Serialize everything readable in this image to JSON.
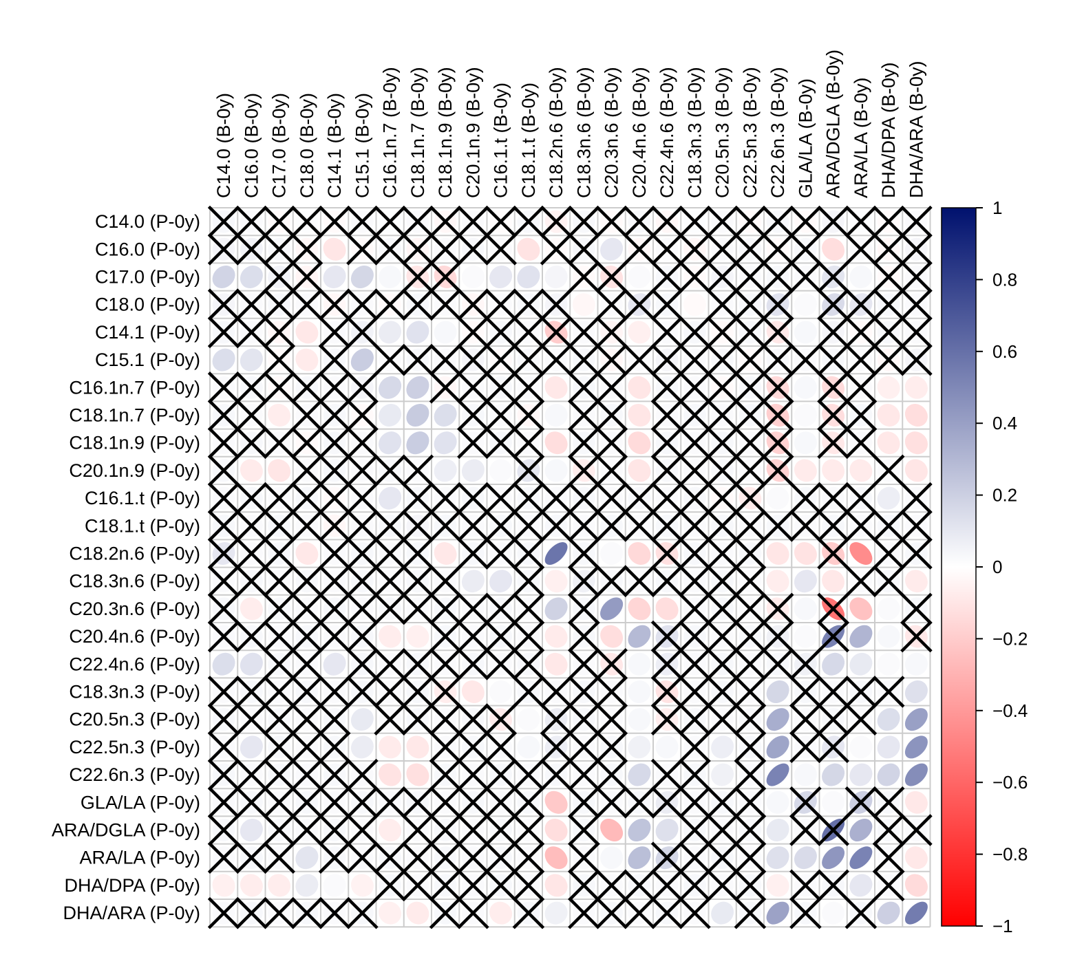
{
  "chart_data": {
    "type": "heatmap",
    "subtype": "correlation-ellipse",
    "title": "",
    "xlabel": "",
    "ylabel": "",
    "columns": [
      "C14.0 (B-0y)",
      "C16.0 (B-0y)",
      "C17.0 (B-0y)",
      "C18.0 (B-0y)",
      "C14.1 (B-0y)",
      "C15.1 (B-0y)",
      "C16.1n.7 (B-0y)",
      "C18.1n.7 (B-0y)",
      "C18.1n.9 (B-0y)",
      "C20.1n.9 (B-0y)",
      "C16.1.t (B-0y)",
      "C18.1.t (B-0y)",
      "C18.2n.6 (B-0y)",
      "C18.3n.6 (B-0y)",
      "C20.3n.6 (B-0y)",
      "C20.4n.6 (B-0y)",
      "C22.4n.6 (B-0y)",
      "C18.3n.3 (B-0y)",
      "C20.5n.3 (B-0y)",
      "C22.5n.3 (B-0y)",
      "C22.6n.3 (B-0y)",
      "GLA/LA (B-0y)",
      "ARA/DGLA (B-0y)",
      "ARA/LA (B-0y)",
      "DHA/DPA (B-0y)",
      "DHA/ARA (B-0y)"
    ],
    "rows": [
      "C14.0 (P-0y)",
      "C16.0 (P-0y)",
      "C17.0 (P-0y)",
      "C18.0 (P-0y)",
      "C14.1 (P-0y)",
      "C15.1 (P-0y)",
      "C16.1n.7 (P-0y)",
      "C18.1n.7 (P-0y)",
      "C18.1n.9 (P-0y)",
      "C20.1n.9 (P-0y)",
      "C16.1.t (P-0y)",
      "C18.1.t (P-0y)",
      "C18.2n.6 (P-0y)",
      "C18.3n.6 (P-0y)",
      "C20.3n.6 (P-0y)",
      "C20.4n.6 (P-0y)",
      "C22.4n.6 (P-0y)",
      "C18.3n.3 (P-0y)",
      "C20.5n.3 (P-0y)",
      "C22.5n.3 (P-0y)",
      "C22.6n.3 (P-0y)",
      "GLA/LA (P-0y)",
      "ARA/DGLA (P-0y)",
      "ARA/LA (P-0y)",
      "DHA/DPA (P-0y)",
      "DHA/ARA (P-0y)"
    ],
    "values": [
      [
        0.03,
        0.02,
        -0.02,
        0.01,
        -0.02,
        0.02,
        0.01,
        0.02,
        -0.03,
        0.02,
        -0.01,
        0.03,
        -0.05,
        0.03,
        -0.02,
        0.03,
        -0.03,
        0.01,
        0.02,
        -0.02,
        0.03,
        -0.02,
        0.04,
        0.01,
        -0.02,
        0.02
      ],
      [
        0.04,
        0.05,
        0.03,
        -0.03,
        -0.1,
        -0.02,
        0.03,
        -0.04,
        0.02,
        0.03,
        0.02,
        -0.11,
        -0.02,
        0.03,
        0.1,
        -0.03,
        0.02,
        -0.03,
        0.02,
        0.03,
        -0.02,
        0.03,
        -0.13,
        0.02,
        -0.03,
        0.04
      ],
      [
        0.18,
        0.14,
        0.05,
        -0.04,
        0.1,
        0.17,
        0.03,
        -0.1,
        -0.15,
        0.02,
        0.1,
        0.12,
        0.04,
        -0.02,
        -0.11,
        0.02,
        0.03,
        -0.02,
        0.04,
        0.02,
        0.03,
        0.02,
        0.11,
        0.03,
        -0.02,
        0.02
      ],
      [
        0.04,
        0.02,
        0.03,
        0.02,
        -0.03,
        0.02,
        -0.02,
        0.03,
        0.02,
        -0.03,
        0.02,
        0.03,
        0.04,
        -0.03,
        0.02,
        0.1,
        0.03,
        -0.02,
        0.02,
        0.03,
        0.12,
        0.02,
        0.15,
        0.1,
        0.03,
        0.02
      ],
      [
        0.03,
        0.02,
        -0.03,
        -0.09,
        0.02,
        0.05,
        0.08,
        0.12,
        0.03,
        -0.02,
        0.03,
        0.02,
        -0.2,
        0.02,
        -0.04,
        -0.06,
        0.02,
        0.03,
        -0.02,
        0.03,
        -0.09,
        0.03,
        0.04,
        -0.02,
        0.03,
        0.02
      ],
      [
        0.14,
        0.11,
        -0.02,
        -0.08,
        0.03,
        0.21,
        0.02,
        0.03,
        0.02,
        0.04,
        -0.02,
        0.03,
        0.02,
        0.03,
        -0.03,
        0.02,
        0.04,
        0.02,
        0.03,
        -0.02,
        0.03,
        0.02,
        0.03,
        0.02,
        -0.03,
        0.04
      ],
      [
        0.02,
        0.03,
        -0.02,
        0.03,
        0.02,
        0.04,
        0.16,
        0.2,
        -0.03,
        0.02,
        0.03,
        0.02,
        -0.09,
        0.03,
        0.02,
        -0.1,
        0.03,
        0.02,
        -0.02,
        0.03,
        -0.15,
        0.03,
        -0.14,
        0.02,
        -0.06,
        -0.07
      ],
      [
        0.03,
        0.02,
        -0.07,
        0.02,
        0.03,
        -0.02,
        0.09,
        0.22,
        0.14,
        0.03,
        0.02,
        -0.03,
        0.03,
        0.02,
        0.03,
        -0.1,
        0.02,
        0.03,
        0.02,
        0.03,
        -0.19,
        0.02,
        -0.13,
        0.03,
        -0.09,
        -0.13
      ],
      [
        0.02,
        0.03,
        0.02,
        -0.02,
        0.03,
        0.02,
        0.12,
        0.21,
        0.12,
        0.02,
        0.03,
        0.02,
        -0.13,
        0.03,
        0.02,
        -0.14,
        0.03,
        0.02,
        0.03,
        0.02,
        -0.18,
        0.03,
        -0.09,
        0.02,
        -0.09,
        -0.12
      ],
      [
        0.03,
        -0.08,
        -0.1,
        0.02,
        0.03,
        0.02,
        0.03,
        0.02,
        0.07,
        0.08,
        0.02,
        0.11,
        0.03,
        -0.07,
        0.02,
        -0.1,
        0.03,
        0.02,
        0.03,
        0.02,
        -0.18,
        -0.08,
        -0.08,
        -0.08,
        0.02,
        -0.1
      ],
      [
        0.02,
        0.03,
        0.02,
        0.03,
        -0.02,
        0.02,
        0.1,
        0.03,
        0.02,
        0.03,
        0.02,
        0.03,
        0.02,
        0.03,
        0.02,
        0.03,
        0.02,
        0.03,
        -0.02,
        -0.08,
        0.02,
        0.03,
        0.02,
        0.03,
        0.07,
        0.02
      ],
      [
        0.03,
        0.02,
        0.03,
        0.02,
        -0.03,
        0.02,
        0.03,
        0.04,
        0.03,
        0.02,
        0.03,
        0.02,
        0.03,
        0.02,
        0.03,
        0.02,
        0.03,
        0.02,
        0.03,
        0.02,
        0.03,
        0.02,
        0.03,
        0.02,
        0.03,
        0.02
      ],
      [
        0.1,
        0.02,
        0.03,
        -0.09,
        0.02,
        0.03,
        0.02,
        0.03,
        -0.09,
        0.03,
        0.02,
        0.03,
        0.58,
        0.03,
        0.02,
        -0.15,
        -0.12,
        0.03,
        0.02,
        0.03,
        -0.1,
        -0.11,
        -0.2,
        -0.45,
        0.02,
        0.03
      ],
      [
        0.02,
        0.03,
        0.02,
        0.03,
        0.02,
        0.03,
        0.02,
        0.03,
        0.02,
        0.08,
        0.1,
        0.03,
        -0.06,
        0.06,
        0.03,
        0.02,
        0.03,
        0.02,
        0.03,
        0.02,
        -0.07,
        0.1,
        -0.09,
        0.02,
        0.03,
        -0.08
      ],
      [
        0.03,
        -0.07,
        0.03,
        0.02,
        0.03,
        0.02,
        0.03,
        0.02,
        0.03,
        0.02,
        0.03,
        0.02,
        0.19,
        0.03,
        0.42,
        -0.16,
        -0.13,
        0.02,
        0.03,
        0.02,
        -0.08,
        0.03,
        -0.55,
        -0.24,
        0.02,
        0.03
      ],
      [
        0.02,
        0.03,
        0.02,
        0.03,
        0.02,
        0.03,
        -0.07,
        -0.06,
        0.03,
        0.02,
        0.03,
        0.02,
        -0.08,
        0.03,
        -0.13,
        0.29,
        0.12,
        0.03,
        0.02,
        0.03,
        0.06,
        0.02,
        0.53,
        0.31,
        0.03,
        -0.09
      ],
      [
        0.14,
        0.12,
        0.03,
        0.02,
        0.1,
        0.03,
        0.02,
        0.03,
        0.02,
        0.03,
        0.02,
        0.03,
        -0.09,
        0.02,
        -0.09,
        0.03,
        0.07,
        0.02,
        0.03,
        0.02,
        0.03,
        0.06,
        0.16,
        0.09,
        0.02,
        0.03
      ],
      [
        0.02,
        0.03,
        0.02,
        0.03,
        0.02,
        0.03,
        0.02,
        0.03,
        -0.07,
        -0.09,
        0.02,
        0.03,
        0.02,
        0.03,
        0.02,
        0.03,
        -0.11,
        0.02,
        0.03,
        0.02,
        0.17,
        0.03,
        0.02,
        0.03,
        0.02,
        0.13
      ],
      [
        0.03,
        0.02,
        0.03,
        0.02,
        0.03,
        0.09,
        0.02,
        0.03,
        0.02,
        0.03,
        -0.08,
        0.02,
        0.08,
        0.03,
        0.02,
        0.03,
        -0.07,
        0.03,
        0.02,
        0.03,
        0.34,
        0.02,
        0.03,
        0.02,
        0.14,
        0.4
      ],
      [
        0.02,
        0.1,
        0.03,
        0.02,
        0.03,
        0.08,
        -0.08,
        -0.09,
        0.02,
        0.03,
        0.02,
        0.03,
        0.07,
        0.02,
        0.03,
        0.06,
        0.03,
        0.02,
        0.07,
        0.03,
        0.38,
        0.02,
        0.1,
        0.02,
        0.1,
        0.45
      ],
      [
        0.03,
        0.02,
        0.03,
        0.02,
        0.03,
        0.02,
        -0.11,
        -0.12,
        0.03,
        0.02,
        0.03,
        0.02,
        0.03,
        0.02,
        0.03,
        0.16,
        0.02,
        0.03,
        0.06,
        0.02,
        0.52,
        0.03,
        0.17,
        0.1,
        0.18,
        0.48
      ],
      [
        0.02,
        0.03,
        0.02,
        0.03,
        0.02,
        0.03,
        0.02,
        0.03,
        0.02,
        0.03,
        0.02,
        0.03,
        -0.21,
        0.03,
        0.02,
        0.03,
        0.08,
        0.02,
        0.03,
        0.02,
        0.03,
        0.16,
        0.02,
        0.2,
        0.03,
        -0.09
      ],
      [
        0.03,
        0.1,
        0.03,
        0.02,
        0.03,
        0.02,
        -0.07,
        0.02,
        0.03,
        0.02,
        0.03,
        0.02,
        -0.13,
        0.03,
        -0.27,
        0.25,
        0.13,
        0.03,
        0.02,
        0.03,
        0.09,
        0.02,
        0.6,
        0.33,
        0.03,
        0.02
      ],
      [
        0.02,
        0.03,
        0.02,
        0.11,
        0.03,
        0.02,
        0.03,
        0.02,
        0.03,
        0.02,
        0.03,
        0.02,
        -0.26,
        0.02,
        0.03,
        0.27,
        0.17,
        0.02,
        0.03,
        0.02,
        0.13,
        0.15,
        0.44,
        0.52,
        0.02,
        -0.09
      ],
      [
        -0.06,
        -0.07,
        -0.07,
        0.08,
        0.02,
        -0.05,
        0.03,
        0.02,
        0.03,
        0.02,
        0.03,
        0.02,
        -0.1,
        0.03,
        0.02,
        0.03,
        0.02,
        0.03,
        0.02,
        0.03,
        -0.06,
        0.02,
        0.03,
        0.1,
        0.02,
        -0.14
      ],
      [
        0.02,
        0.03,
        0.02,
        0.03,
        0.02,
        0.03,
        -0.06,
        -0.08,
        0.03,
        0.02,
        -0.07,
        0.03,
        0.06,
        0.02,
        0.03,
        0.02,
        0.03,
        0.02,
        0.09,
        0.03,
        0.39,
        0.03,
        0.02,
        0.03,
        0.2,
        0.55
      ]
    ],
    "not_significant": [
      "11111111111111111111111111",
      "11110111111011011111110111",
      "00110001100001101111111011",
      "11111111111110111011101111",
      "11101100011111101111101111",
      "00101011111111111111111111",
      "11111100111101101111101100",
      "11011100011101101111101100",
      "11111100011101101111101100",
      "10011111000101101111100010",
      "11111101111111111111011101",
      "11111111111111111111111111",
      "11101111011101001111001011",
      "11111111100101111111000110",
      "10111111111101000111101001",
      "11111100111101001111101001",
      "00110111111101101111110000",
      "11111111100111101111011110",
      "11111011111011101111011100",
      "10111000111011100101011000",
      "11111100111111101101000000",
      "11111111111101111111010110",
      "10111101111101000111011011",
      "11101111111101001111000010",
      "00000011111101111111011010",
      "11111100110101111101010100"
    ],
    "legend": {
      "position": "right",
      "range": [
        -1,
        1
      ],
      "ticks": [
        "1",
        "0.8",
        "0.6",
        "0.4",
        "0.2",
        "0",
        "−0.2",
        "−0.4",
        "−0.6",
        "−0.8",
        "−1"
      ],
      "tick_values": [
        1,
        0.8,
        0.6,
        0.4,
        0.2,
        0,
        -0.2,
        -0.4,
        -0.6,
        -0.8,
        -1
      ],
      "colors": {
        "negative": "#ff0000",
        "zero": "#ffffff",
        "positive": "#00116e"
      }
    },
    "colors": {
      "grid": "#cccccc",
      "cross": "#000000"
    }
  }
}
